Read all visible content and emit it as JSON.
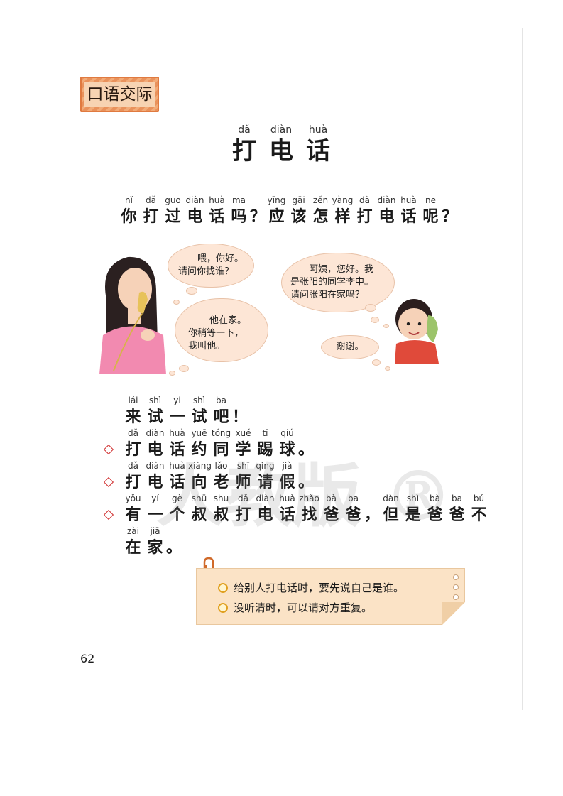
{
  "section_label": "口语交际",
  "title": [
    {
      "py": "dǎ",
      "hz": "打"
    },
    {
      "py": "diàn",
      "hz": "电"
    },
    {
      "py": "huà",
      "hz": "话"
    }
  ],
  "question": [
    {
      "py": "nǐ",
      "hz": "你"
    },
    {
      "py": "dǎ",
      "hz": "打"
    },
    {
      "py": "guo",
      "hz": "过"
    },
    {
      "py": "diàn",
      "hz": "电"
    },
    {
      "py": "huà",
      "hz": "话"
    },
    {
      "py": "ma",
      "hz": "吗"
    },
    {
      "py": "",
      "hz": "？"
    },
    {
      "py": "yīng",
      "hz": "应"
    },
    {
      "py": "gāi",
      "hz": "该"
    },
    {
      "py": "zěn",
      "hz": "怎"
    },
    {
      "py": "yàng",
      "hz": "样"
    },
    {
      "py": "dǎ",
      "hz": "打"
    },
    {
      "py": "diàn",
      "hz": "电"
    },
    {
      "py": "huà",
      "hz": "话"
    },
    {
      "py": "ne",
      "hz": "呢"
    },
    {
      "py": "",
      "hz": "？"
    }
  ],
  "bubbles": {
    "mom_1": [
      "喂，你好。",
      "请问你找谁？"
    ],
    "mom_2": [
      "他在家。",
      "你稍等一下，",
      "我叫他。"
    ],
    "boy_1": [
      "阿姨，您好。我",
      "是张阳的同学李中。",
      "请问张阳在家吗？"
    ],
    "boy_2": [
      "谢谢。"
    ]
  },
  "try_heading": [
    {
      "py": "lái",
      "hz": "来"
    },
    {
      "py": "shì",
      "hz": "试"
    },
    {
      "py": "yi",
      "hz": "一"
    },
    {
      "py": "shì",
      "hz": "试"
    },
    {
      "py": "ba",
      "hz": "吧"
    },
    {
      "py": "",
      "hz": "！"
    }
  ],
  "tasks": [
    [
      {
        "py": "dǎ",
        "hz": "打"
      },
      {
        "py": "diàn",
        "hz": "电"
      },
      {
        "py": "huà",
        "hz": "话"
      },
      {
        "py": "yuē",
        "hz": "约"
      },
      {
        "py": "tóng",
        "hz": "同"
      },
      {
        "py": "xué",
        "hz": "学"
      },
      {
        "py": "tī",
        "hz": "踢"
      },
      {
        "py": "qiú",
        "hz": "球"
      },
      {
        "py": "",
        "hz": "。"
      }
    ],
    [
      {
        "py": "dǎ",
        "hz": "打"
      },
      {
        "py": "diàn",
        "hz": "电"
      },
      {
        "py": "huà",
        "hz": "话"
      },
      {
        "py": "xiàng",
        "hz": "向"
      },
      {
        "py": "lǎo",
        "hz": "老"
      },
      {
        "py": "shī",
        "hz": "师"
      },
      {
        "py": "qǐng",
        "hz": "请"
      },
      {
        "py": "jià",
        "hz": "假"
      },
      {
        "py": "",
        "hz": "。"
      }
    ],
    [
      {
        "py": "yǒu",
        "hz": "有"
      },
      {
        "py": "yí",
        "hz": "一"
      },
      {
        "py": "gè",
        "hz": "个"
      },
      {
        "py": "shū",
        "hz": "叔"
      },
      {
        "py": "shu",
        "hz": "叔"
      },
      {
        "py": "dǎ",
        "hz": "打"
      },
      {
        "py": "diàn",
        "hz": "电"
      },
      {
        "py": "huà",
        "hz": "话"
      },
      {
        "py": "zhǎo",
        "hz": "找"
      },
      {
        "py": "bà",
        "hz": "爸"
      },
      {
        "py": "ba",
        "hz": "爸"
      },
      {
        "py": "",
        "hz": "，"
      },
      {
        "py": "dàn",
        "hz": "但"
      },
      {
        "py": "shì",
        "hz": "是"
      },
      {
        "py": "bà",
        "hz": "爸"
      },
      {
        "py": "ba",
        "hz": "爸"
      },
      {
        "py": "bú",
        "hz": "不"
      }
    ]
  ],
  "task3_cont": [
    {
      "py": "zài",
      "hz": "在"
    },
    {
      "py": "jiā",
      "hz": "家"
    },
    {
      "py": "",
      "hz": "。"
    }
  ],
  "tips": [
    "给别人打电话时，要先说自己是谁。",
    "没听清时，可以请对方重复。"
  ],
  "page_number": "62",
  "watermark": "人教版 ®",
  "colors": {
    "badge": "#e9925c",
    "bullet": "#d02c2c",
    "bubble": "#fde6d6",
    "note": "#fbe3c6"
  }
}
